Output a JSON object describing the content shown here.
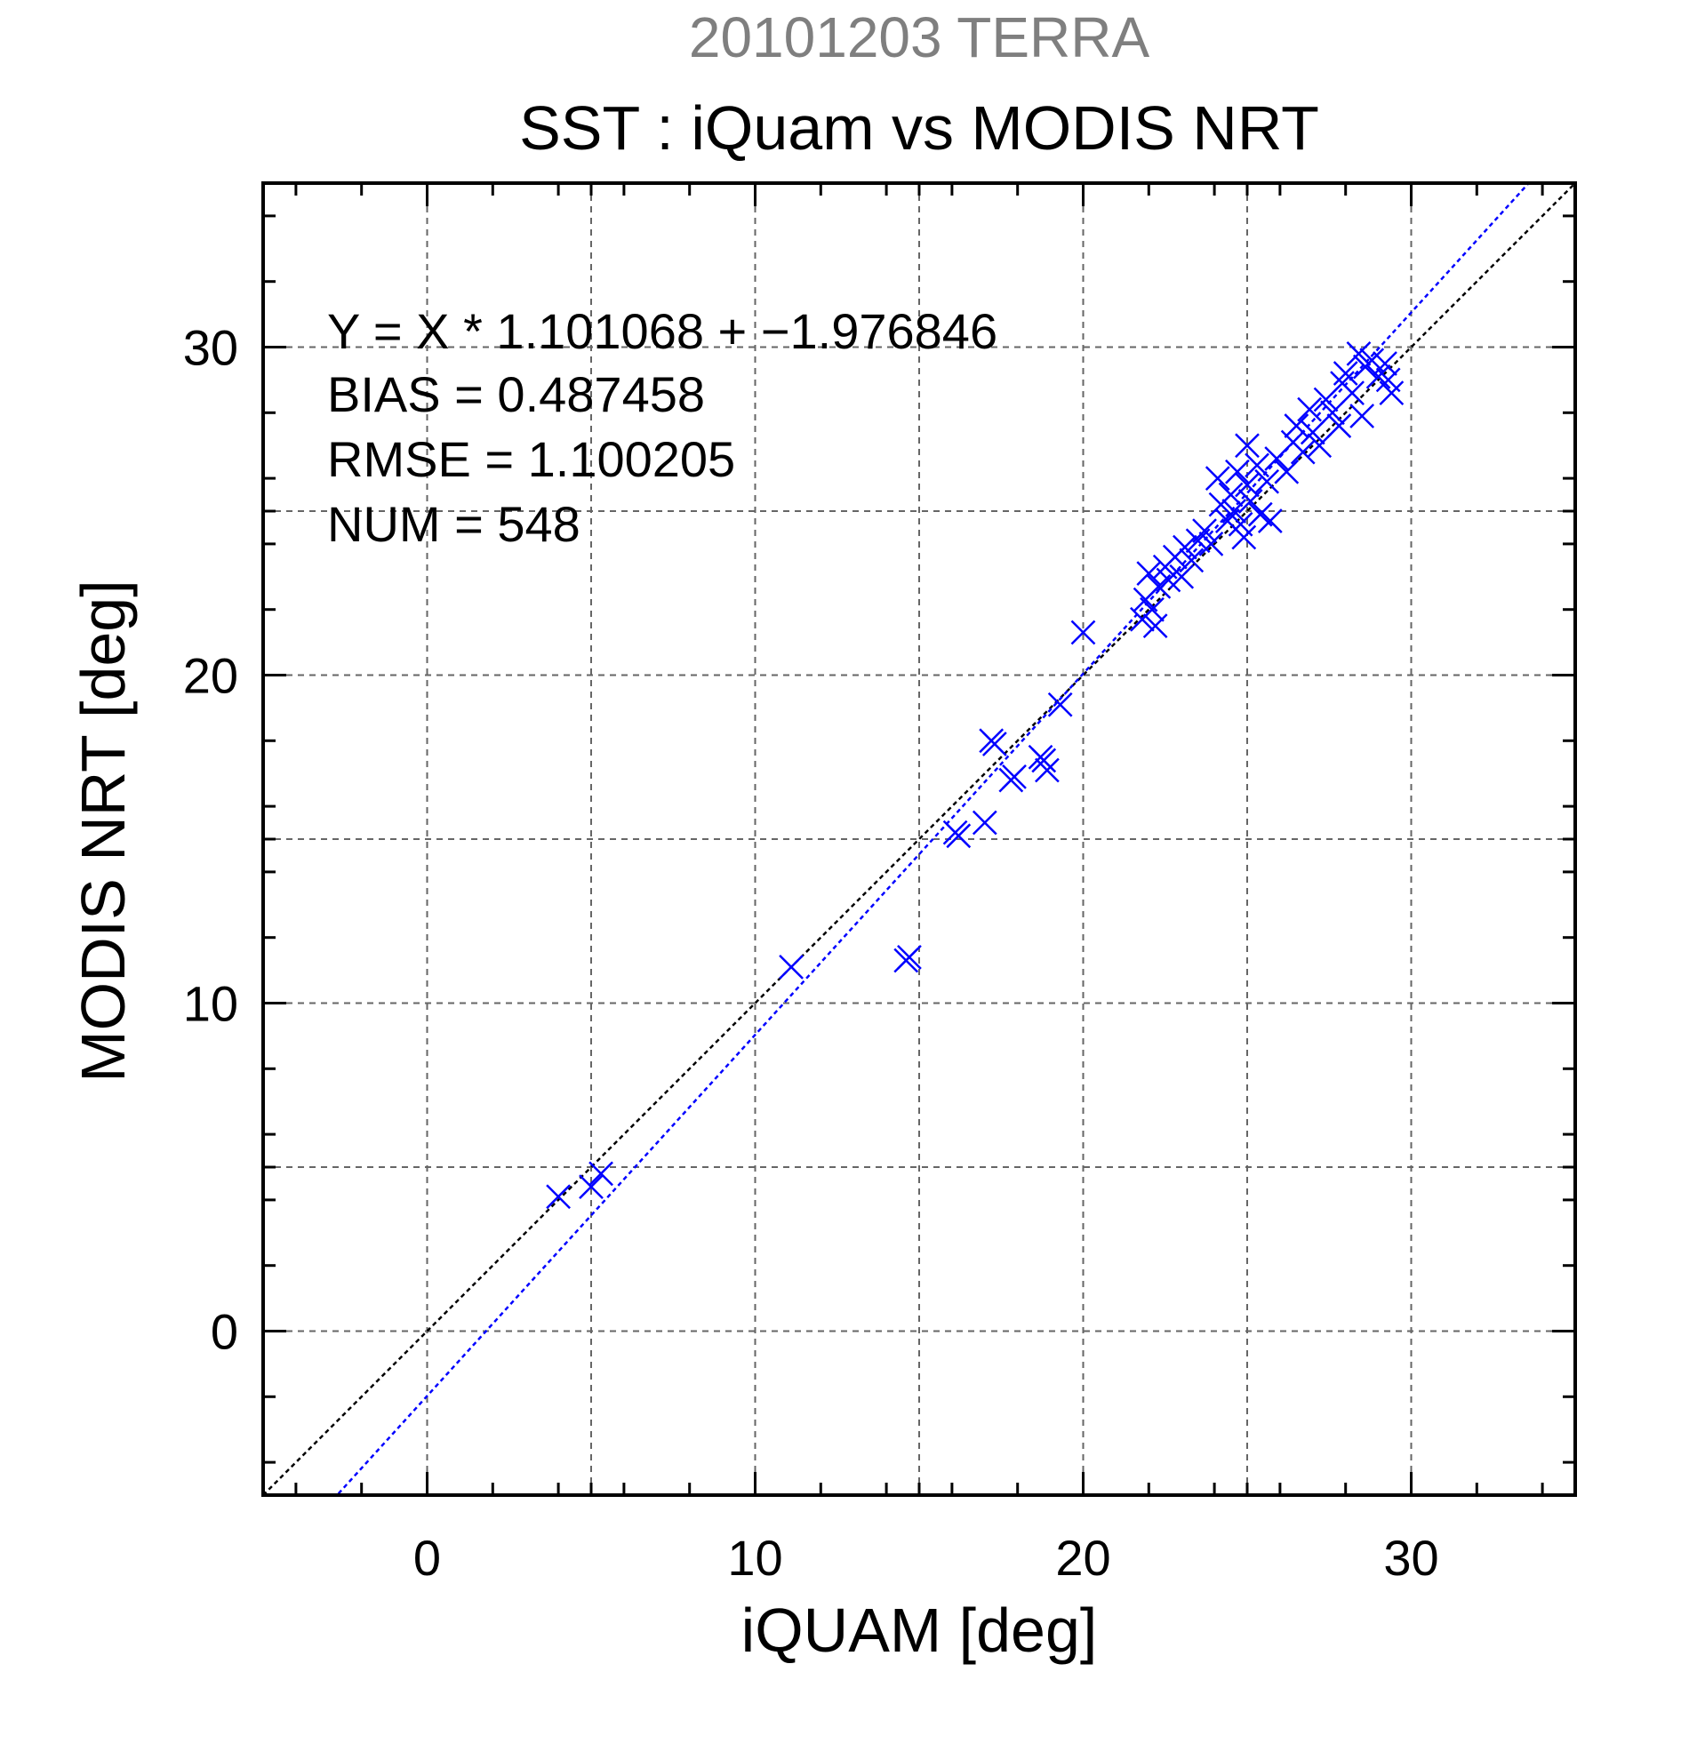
{
  "colors": {
    "marker": "#0000ff",
    "fit_line": "#0000ff",
    "identity_line": "#000000",
    "grid": "#666666",
    "supertitle": "#7f7f7f",
    "text": "#000000"
  },
  "chart_data": {
    "type": "scatter",
    "supertitle": "20101203 TERRA",
    "title": "SST : iQuam vs MODIS NRT",
    "xlabel": "iQUAM [deg]",
    "ylabel": "MODIS NRT [deg]",
    "xlim": [
      -5,
      35
    ],
    "ylim": [
      -5,
      35
    ],
    "xticks": [
      0,
      10,
      20,
      30
    ],
    "yticks": [
      0,
      10,
      20,
      30
    ],
    "grid": true,
    "grid_step": 5,
    "stats": {
      "equation": "Y = X * 1.101068 + −1.976846",
      "bias": "BIAS = 0.487458",
      "rmse": "RMSE = 1.100205",
      "num": "NUM = 548"
    },
    "fit": {
      "slope": 1.101068,
      "intercept": -1.976846
    },
    "identity": {
      "slope": 1,
      "intercept": 0
    },
    "marker": "x",
    "points": [
      [
        4.0,
        4.1
      ],
      [
        5.0,
        4.4
      ],
      [
        5.3,
        4.8
      ],
      [
        11.1,
        11.1
      ],
      [
        14.6,
        11.3
      ],
      [
        14.7,
        11.4
      ],
      [
        16.1,
        15.2
      ],
      [
        16.2,
        15.1
      ],
      [
        17.0,
        15.5
      ],
      [
        17.2,
        18.0
      ],
      [
        17.3,
        17.9
      ],
      [
        17.8,
        16.8
      ],
      [
        17.9,
        16.9
      ],
      [
        18.7,
        17.5
      ],
      [
        18.8,
        17.4
      ],
      [
        18.9,
        17.1
      ],
      [
        19.3,
        19.1
      ],
      [
        20.0,
        21.3
      ],
      [
        21.8,
        21.7
      ],
      [
        21.9,
        22.3
      ],
      [
        22.0,
        23.1
      ],
      [
        22.1,
        22.0
      ],
      [
        22.2,
        21.5
      ],
      [
        22.3,
        22.7
      ],
      [
        22.5,
        23.3
      ],
      [
        22.6,
        22.9
      ],
      [
        22.8,
        23.6
      ],
      [
        23.0,
        23.0
      ],
      [
        23.1,
        23.9
      ],
      [
        23.3,
        23.5
      ],
      [
        23.5,
        24.1
      ],
      [
        23.7,
        24.4
      ],
      [
        23.9,
        24.0
      ],
      [
        24.1,
        26.0
      ],
      [
        24.2,
        25.2
      ],
      [
        24.4,
        24.7
      ],
      [
        24.5,
        25.5
      ],
      [
        24.6,
        25.0
      ],
      [
        24.7,
        26.2
      ],
      [
        24.8,
        24.6
      ],
      [
        24.9,
        24.2
      ],
      [
        25.0,
        25.8
      ],
      [
        25.0,
        27.0
      ],
      [
        25.1,
        25.3
      ],
      [
        25.3,
        26.4
      ],
      [
        25.4,
        24.9
      ],
      [
        25.6,
        25.9
      ],
      [
        25.7,
        24.7
      ],
      [
        25.9,
        26.6
      ],
      [
        26.2,
        26.2
      ],
      [
        26.4,
        27.1
      ],
      [
        26.5,
        27.6
      ],
      [
        26.7,
        26.8
      ],
      [
        26.9,
        28.1
      ],
      [
        27.0,
        27.4
      ],
      [
        27.2,
        27.0
      ],
      [
        27.4,
        28.4
      ],
      [
        27.6,
        28.0
      ],
      [
        27.8,
        27.6
      ],
      [
        27.9,
        28.9
      ],
      [
        28.0,
        29.2
      ],
      [
        28.2,
        28.6
      ],
      [
        28.4,
        29.8
      ],
      [
        28.5,
        27.9
      ],
      [
        28.6,
        29.4
      ],
      [
        28.8,
        29.6
      ],
      [
        29.0,
        29.1
      ],
      [
        29.2,
        29.5
      ],
      [
        29.3,
        29.0
      ],
      [
        29.4,
        28.6
      ]
    ]
  }
}
